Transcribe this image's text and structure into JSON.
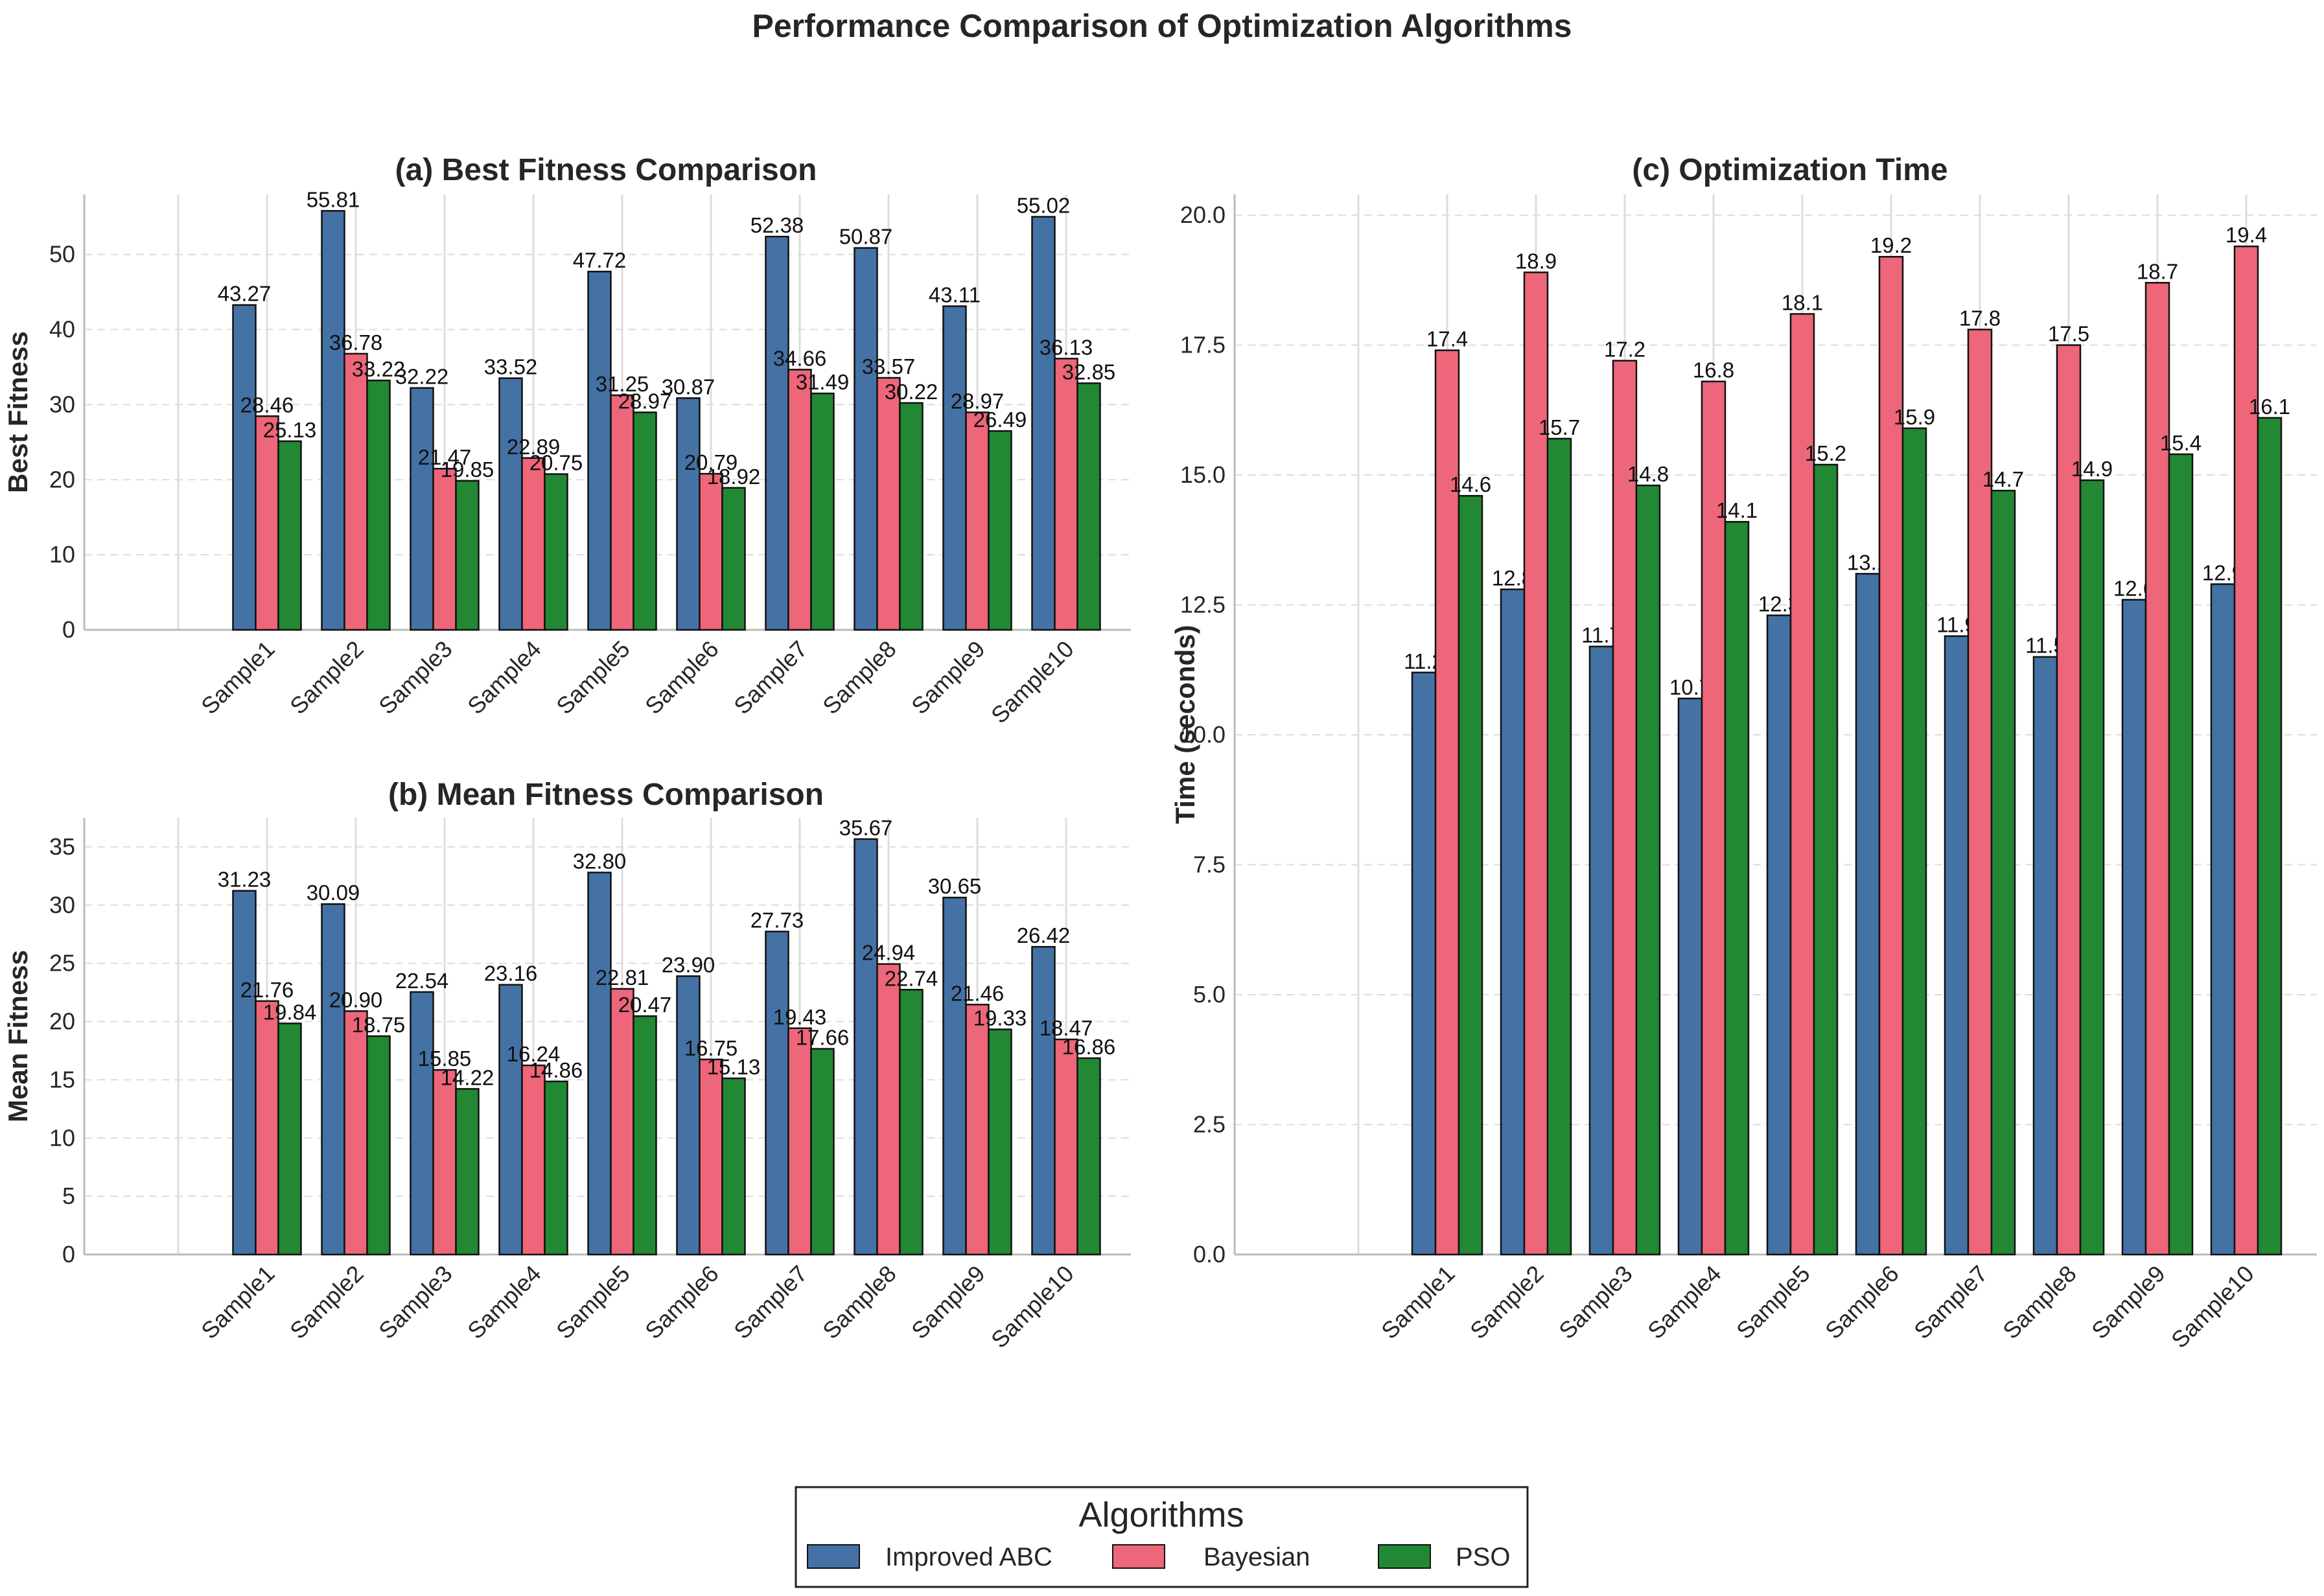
{
  "title": "Performance Comparison of Optimization Algorithms",
  "legend": {
    "title": "Algorithms",
    "entries": [
      {
        "name": "Improved ABC",
        "color": "#4472a4"
      },
      {
        "name": "Bayesian",
        "color": "#ee6679"
      },
      {
        "name": "PSO",
        "color": "#228833"
      }
    ]
  },
  "chart_data": [
    {
      "id": "a",
      "type": "bar",
      "title": "(a) Best Fitness Comparison",
      "xlabel": "",
      "ylabel": "Best Fitness",
      "ylim": [
        0,
        58
      ],
      "yticks": [
        "0",
        "10",
        "20",
        "30",
        "40",
        "50"
      ],
      "label_decimals": 2,
      "categories": [
        "Sample1",
        "Sample2",
        "Sample3",
        "Sample4",
        "Sample5",
        "Sample6",
        "Sample7",
        "Sample8",
        "Sample9",
        "Sample10"
      ],
      "series": [
        {
          "name": "Improved ABC",
          "values": [
            43.27,
            55.81,
            32.22,
            33.52,
            47.72,
            30.87,
            52.38,
            50.87,
            43.11,
            55.02
          ]
        },
        {
          "name": "Bayesian",
          "values": [
            28.46,
            36.78,
            21.47,
            22.89,
            31.25,
            20.79,
            34.66,
            33.57,
            28.97,
            36.13
          ]
        },
        {
          "name": "PSO",
          "values": [
            25.13,
            33.22,
            19.85,
            20.75,
            28.97,
            18.92,
            31.49,
            30.22,
            26.49,
            32.85
          ]
        }
      ]
    },
    {
      "id": "b",
      "type": "bar",
      "title": "(b) Mean Fitness Comparison",
      "xlabel": "",
      "ylabel": "Mean Fitness",
      "ylim": [
        0,
        37.5
      ],
      "yticks": [
        "0",
        "5",
        "10",
        "15",
        "20",
        "25",
        "30",
        "35"
      ],
      "label_decimals": 2,
      "categories": [
        "Sample1",
        "Sample2",
        "Sample3",
        "Sample4",
        "Sample5",
        "Sample6",
        "Sample7",
        "Sample8",
        "Sample9",
        "Sample10"
      ],
      "series": [
        {
          "name": "Improved ABC",
          "values": [
            31.23,
            30.09,
            22.54,
            23.16,
            32.8,
            23.9,
            27.73,
            35.67,
            30.65,
            26.42
          ]
        },
        {
          "name": "Bayesian",
          "values": [
            21.76,
            20.9,
            15.85,
            16.24,
            22.81,
            16.75,
            19.43,
            24.94,
            21.46,
            18.47
          ]
        },
        {
          "name": "PSO",
          "values": [
            19.84,
            18.75,
            14.22,
            14.86,
            20.47,
            15.13,
            17.66,
            22.74,
            19.33,
            16.86
          ]
        }
      ]
    },
    {
      "id": "c",
      "type": "bar",
      "title": "(c) Optimization Time",
      "xlabel": "",
      "ylabel": "Time (seconds)",
      "ylim": [
        0,
        20.4
      ],
      "yticks": [
        "0.0",
        "2.5",
        "5.0",
        "7.5",
        "10.0",
        "12.5",
        "15.0",
        "17.5",
        "20.0"
      ],
      "label_decimals": 1,
      "categories": [
        "Sample1",
        "Sample2",
        "Sample3",
        "Sample4",
        "Sample5",
        "Sample6",
        "Sample7",
        "Sample8",
        "Sample9",
        "Sample10"
      ],
      "series": [
        {
          "name": "Improved ABC",
          "values": [
            11.2,
            12.8,
            11.7,
            10.7,
            12.3,
            13.1,
            11.9,
            11.5,
            12.6,
            12.9
          ]
        },
        {
          "name": "Bayesian",
          "values": [
            17.4,
            18.9,
            17.2,
            16.8,
            18.1,
            19.2,
            17.8,
            17.5,
            18.7,
            19.4
          ]
        },
        {
          "name": "PSO",
          "values": [
            14.6,
            15.7,
            14.8,
            14.1,
            15.2,
            15.9,
            14.7,
            14.9,
            15.4,
            16.1
          ]
        }
      ]
    }
  ]
}
